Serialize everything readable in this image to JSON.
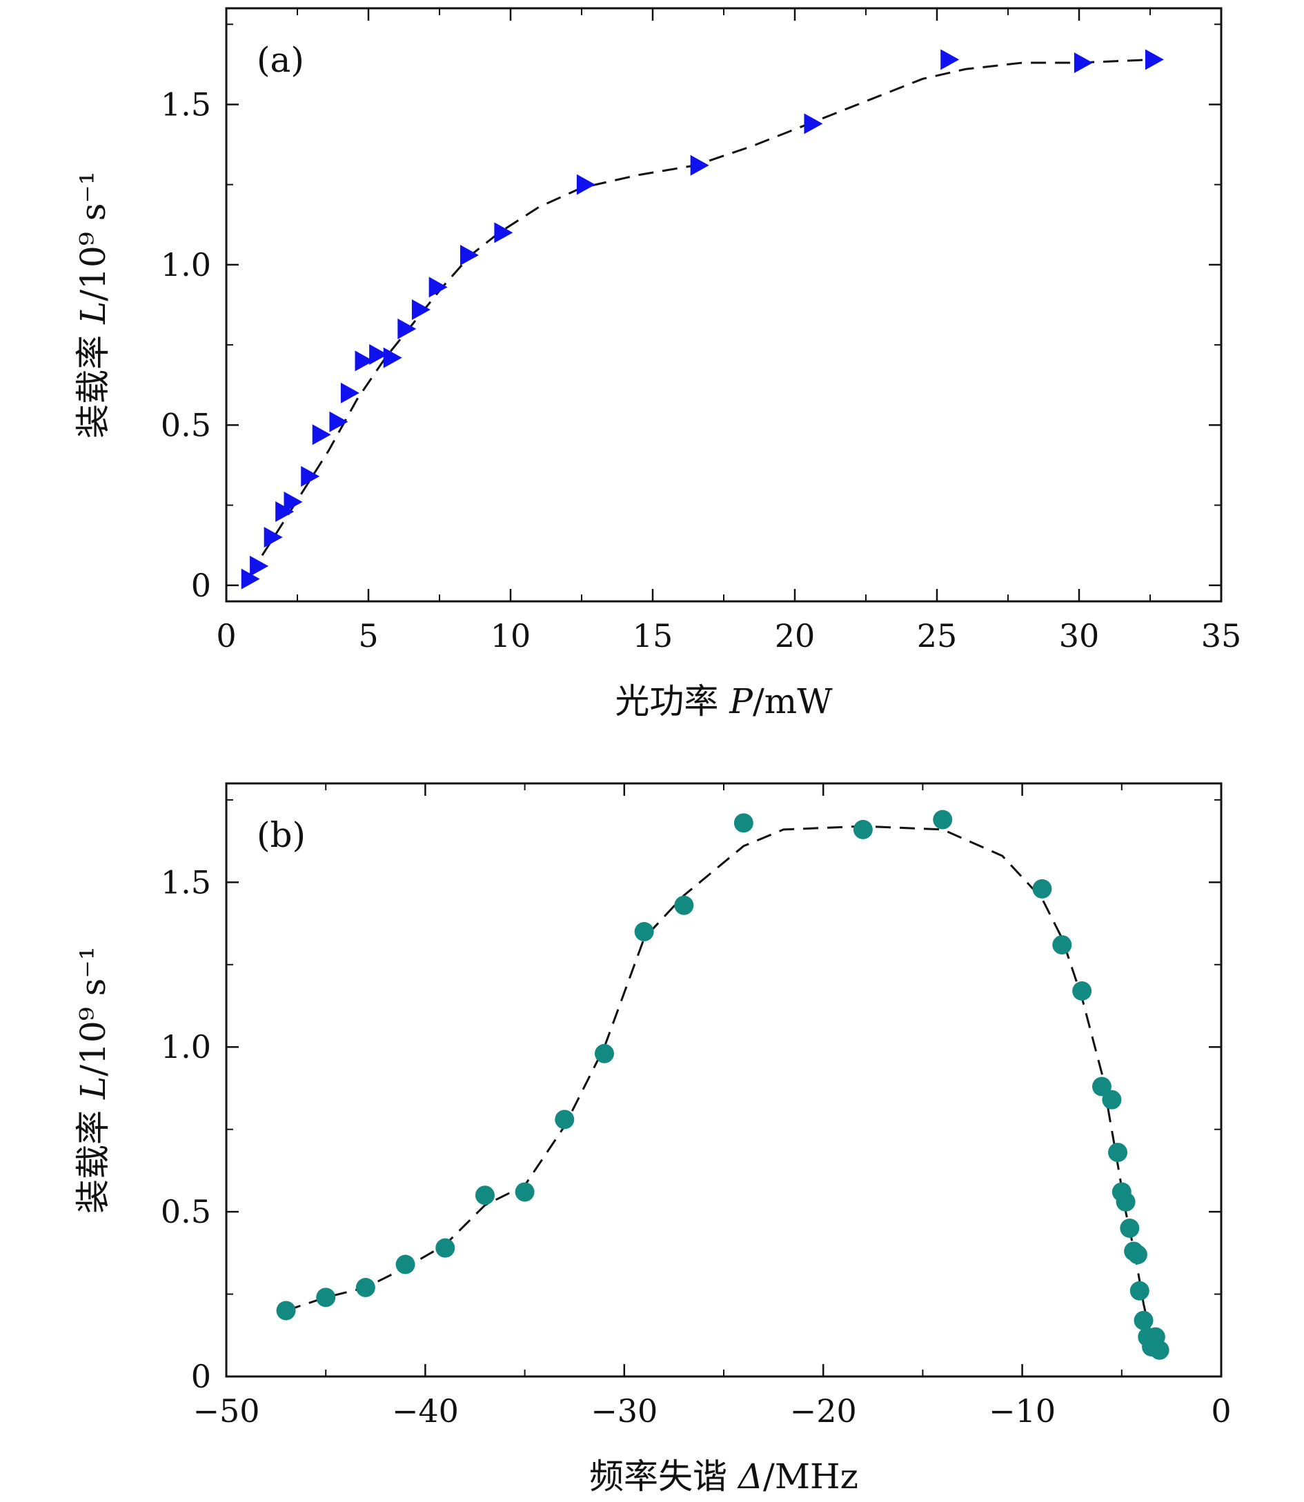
{
  "chart_data": [
    {
      "type": "scatter",
      "panel_label": "(a)",
      "xlabel": {
        "prefix": "光功率 ",
        "symbol": "P",
        "unit": "/mW"
      },
      "ylabel": {
        "prefix": "装载率 ",
        "symbol": "L",
        "unit": "/10⁹ s⁻¹"
      },
      "xlim": [
        0,
        35
      ],
      "ylim": [
        -0.05,
        1.8
      ],
      "xticks": [
        0,
        5,
        10,
        15,
        20,
        25,
        30,
        35
      ],
      "xtick_labels": [
        "0",
        "5",
        "10",
        "15",
        "20",
        "25",
        "30",
        "35"
      ],
      "yticks": [
        0,
        0.5,
        1.0,
        1.5
      ],
      "ytick_labels": [
        "0",
        "0.5",
        "1.0",
        "1.5"
      ],
      "grid": false,
      "marker": "triangle-right",
      "marker_color": "#0f12ef",
      "line_style": "dashed",
      "series": [
        {
          "x": [
            0.8,
            1.1,
            1.6,
            2.0,
            2.3,
            2.9,
            3.3,
            3.9,
            4.3,
            4.8,
            5.3,
            5.8,
            6.3,
            6.8,
            7.4,
            8.5,
            9.7,
            12.6,
            16.6,
            20.6,
            25.4,
            30.1,
            32.6
          ],
          "y": [
            0.02,
            0.06,
            0.15,
            0.23,
            0.26,
            0.34,
            0.47,
            0.51,
            0.6,
            0.7,
            0.72,
            0.71,
            0.8,
            0.86,
            0.93,
            1.03,
            1.1,
            1.25,
            1.31,
            1.44,
            1.64,
            1.63,
            1.64
          ]
        }
      ],
      "fit_line": {
        "x": [
          0.8,
          1.6,
          2.6,
          3.6,
          4.6,
          5.6,
          6.6,
          7.6,
          8.6,
          9.6,
          11.0,
          12.5,
          14.5,
          16.5,
          18.5,
          20.5,
          22.5,
          24.5,
          26.0,
          28.0,
          30.0,
          32.6
        ],
        "y": [
          0.03,
          0.14,
          0.28,
          0.42,
          0.58,
          0.71,
          0.82,
          0.93,
          1.03,
          1.1,
          1.18,
          1.24,
          1.28,
          1.31,
          1.37,
          1.44,
          1.51,
          1.58,
          1.61,
          1.63,
          1.63,
          1.64
        ]
      }
    },
    {
      "type": "scatter",
      "panel_label": "(b)",
      "xlabel": {
        "prefix": "频率失谐 ",
        "symbol": "Δ",
        "unit": "/MHz"
      },
      "ylabel": {
        "prefix": "装载率 ",
        "symbol": "L",
        "unit": "/10⁹ s⁻¹"
      },
      "xlim": [
        -50,
        0
      ],
      "ylim": [
        0,
        1.8
      ],
      "xticks": [
        -50,
        -40,
        -30,
        -20,
        -10,
        0
      ],
      "xtick_labels": [
        "−50",
        "−40",
        "−30",
        "−20",
        "−10",
        "0"
      ],
      "yticks": [
        0,
        0.5,
        1.0,
        1.5
      ],
      "ytick_labels": [
        "0",
        "0.5",
        "1.0",
        "1.5"
      ],
      "grid": false,
      "marker": "circle",
      "marker_color": "#128a82",
      "line_style": "dashed",
      "series": [
        {
          "x": [
            -47,
            -45,
            -43,
            -41,
            -39,
            -37,
            -35,
            -33,
            -31,
            -29,
            -27,
            -24,
            -18,
            -14,
            -9,
            -8,
            -7,
            -6,
            -5.5,
            -5.2,
            -5.0,
            -4.8,
            -4.6,
            -4.4,
            -4.2,
            -4.1,
            -3.9,
            -3.7,
            -3.5,
            -3.3,
            -3.1
          ],
          "y": [
            0.2,
            0.24,
            0.27,
            0.34,
            0.39,
            0.55,
            0.56,
            0.78,
            0.98,
            1.35,
            1.43,
            1.68,
            1.66,
            1.69,
            1.48,
            1.31,
            1.17,
            0.88,
            0.84,
            0.68,
            0.56,
            0.53,
            0.45,
            0.38,
            0.37,
            0.26,
            0.17,
            0.12,
            0.09,
            0.12,
            0.08
          ]
        }
      ],
      "fit_line": {
        "x": [
          -47,
          -45,
          -43,
          -41,
          -39,
          -37,
          -35,
          -33,
          -31,
          -29,
          -27,
          -24,
          -22,
          -18,
          -14,
          -11,
          -9,
          -8,
          -7,
          -6,
          -5.3,
          -4.8,
          -4.3,
          -3.9,
          -3.6,
          -3.3,
          -3.1
        ],
        "y": [
          0.2,
          0.24,
          0.27,
          0.33,
          0.4,
          0.52,
          0.58,
          0.76,
          1.0,
          1.33,
          1.46,
          1.61,
          1.66,
          1.67,
          1.66,
          1.58,
          1.45,
          1.33,
          1.15,
          0.92,
          0.68,
          0.5,
          0.36,
          0.22,
          0.14,
          0.1,
          0.08
        ]
      }
    }
  ]
}
